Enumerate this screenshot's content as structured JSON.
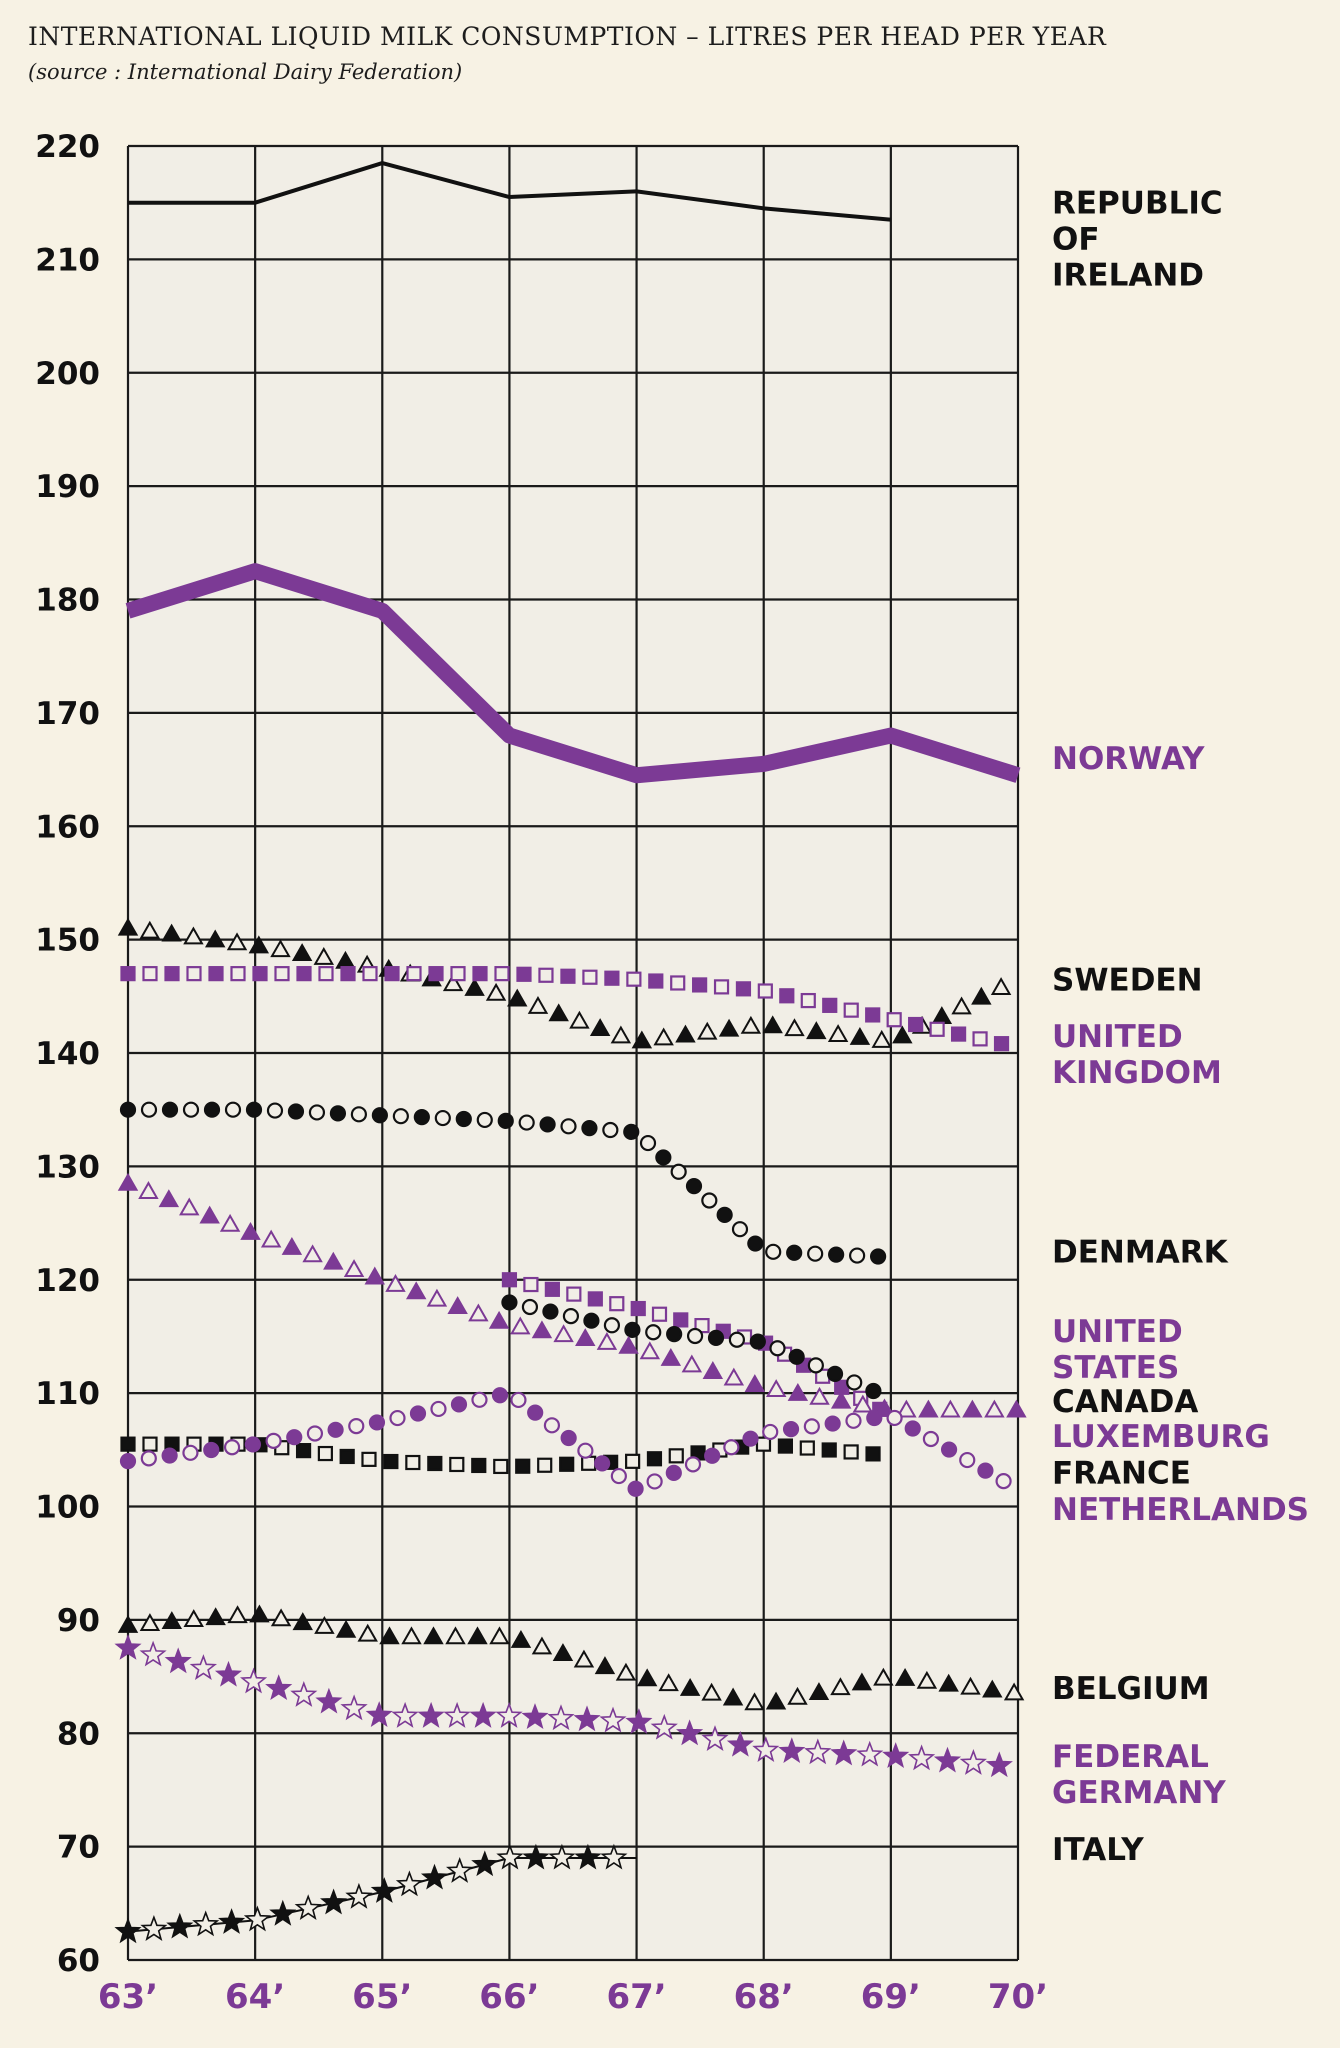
{
  "colors": {
    "black": "#111111",
    "purple": "#7c3a95",
    "grid": "#1a1a1a",
    "plot_bg": "#f1eee6"
  },
  "chart_data": {
    "type": "line",
    "title": "INTERNATIONAL LIQUID MILK CONSUMPTION – LITRES PER HEAD PER YEAR",
    "subtitle": "(source : International Dairy Federation)",
    "xlabel": "",
    "ylabel": "",
    "categories": [
      "63’",
      "64’",
      "65’",
      "66’",
      "67’",
      "68’",
      "69’",
      "70’"
    ],
    "x": [
      63,
      64,
      65,
      66,
      67,
      68,
      69,
      70
    ],
    "ylim": [
      60,
      220
    ],
    "yticks": [
      220,
      210,
      200,
      190,
      180,
      170,
      160,
      150,
      140,
      130,
      120,
      110,
      100,
      90,
      80,
      70,
      60
    ],
    "grid": true,
    "series": [
      {
        "name": "Republic of Ireland",
        "label": [
          "REPUBLIC",
          "OF",
          "IRELAND"
        ],
        "color": "black",
        "marker": "line",
        "x": [
          63,
          64,
          65,
          66,
          67,
          68,
          69
        ],
        "values": [
          215,
          215,
          218.5,
          215.5,
          216,
          214.5,
          213.5
        ]
      },
      {
        "name": "Norway",
        "label": [
          "NORWAY"
        ],
        "color": "purple",
        "marker": "thick-line",
        "x": [
          63,
          64,
          65,
          66,
          67,
          68,
          69,
          70
        ],
        "values": [
          179,
          182.5,
          179,
          168,
          164.5,
          165.5,
          168,
          164.5
        ]
      },
      {
        "name": "Sweden",
        "label": [
          "SWEDEN"
        ],
        "color": "black",
        "marker": "triangle",
        "x": [
          63,
          64,
          65,
          66,
          67,
          68,
          69,
          70
        ],
        "values": [
          151,
          149.5,
          147.5,
          145,
          141,
          142.5,
          141,
          146.5
        ]
      },
      {
        "name": "United Kingdom",
        "label": [
          "UNITED",
          "KINGDOM"
        ],
        "color": "purple",
        "marker": "square",
        "x": [
          63,
          64,
          65,
          66,
          67,
          68,
          69,
          70
        ],
        "values": [
          147,
          147,
          147,
          147,
          146.5,
          145.5,
          143,
          140.5
        ]
      },
      {
        "name": "Denmark",
        "label": [
          "DENMARK"
        ],
        "color": "black",
        "marker": "circle",
        "x": [
          63,
          64,
          65,
          66,
          67,
          68,
          69
        ],
        "values": [
          135,
          135,
          134.5,
          134,
          133,
          122.5,
          122
        ]
      },
      {
        "name": "United States",
        "label": [
          "UNITED",
          "STATES"
        ],
        "color": "purple",
        "marker": "square",
        "x": [
          66,
          67,
          68,
          69
        ],
        "values": [
          120,
          117.5,
          114.5,
          108
        ]
      },
      {
        "name": "Canada",
        "label": [
          "CANADA"
        ],
        "color": "black",
        "marker": "circle",
        "x": [
          66,
          67,
          68,
          69
        ],
        "values": [
          118,
          115.5,
          114.5,
          109.5
        ]
      },
      {
        "name": "Luxemburg",
        "label": [
          "LUXEMBURG"
        ],
        "color": "purple",
        "marker": "triangle",
        "x": [
          63,
          64,
          65,
          66,
          67,
          68,
          69,
          70
        ],
        "values": [
          128.5,
          124,
          120,
          116,
          114,
          110.5,
          108.5,
          108.5
        ]
      },
      {
        "name": "France",
        "label": [
          "FRANCE"
        ],
        "color": "black",
        "marker": "square",
        "x": [
          63,
          64,
          65,
          66,
          67,
          68,
          69
        ],
        "values": [
          105.5,
          105.5,
          104,
          103.5,
          104,
          105.5,
          104.5
        ]
      },
      {
        "name": "Netherlands",
        "label": [
          "NETHERLANDS"
        ],
        "color": "purple",
        "marker": "circle",
        "x": [
          63,
          64,
          65,
          66,
          67,
          68,
          69,
          70
        ],
        "values": [
          104,
          105.5,
          107.5,
          110,
          101.5,
          106.5,
          108,
          101.5
        ]
      },
      {
        "name": "Belgium",
        "label": [
          "BELGIUM"
        ],
        "color": "black",
        "marker": "triangle",
        "x": [
          63,
          64,
          65,
          66,
          67,
          68,
          69,
          70
        ],
        "values": [
          89.5,
          90.5,
          88.5,
          88.5,
          85,
          82.5,
          85,
          83.5
        ]
      },
      {
        "name": "Federal Germany",
        "label": [
          "FEDERAL",
          "GERMANY"
        ],
        "color": "purple",
        "marker": "star",
        "x": [
          63,
          64,
          65,
          66,
          67,
          68,
          69,
          70
        ],
        "values": [
          87.5,
          84.5,
          81.5,
          81.5,
          81,
          78.5,
          78,
          77
        ]
      },
      {
        "name": "Italy",
        "label": [
          "ITALY"
        ],
        "color": "black",
        "marker": "star",
        "x": [
          63,
          64,
          65,
          66,
          67
        ],
        "values": [
          62.5,
          63.5,
          66,
          69,
          69
        ]
      }
    ]
  }
}
